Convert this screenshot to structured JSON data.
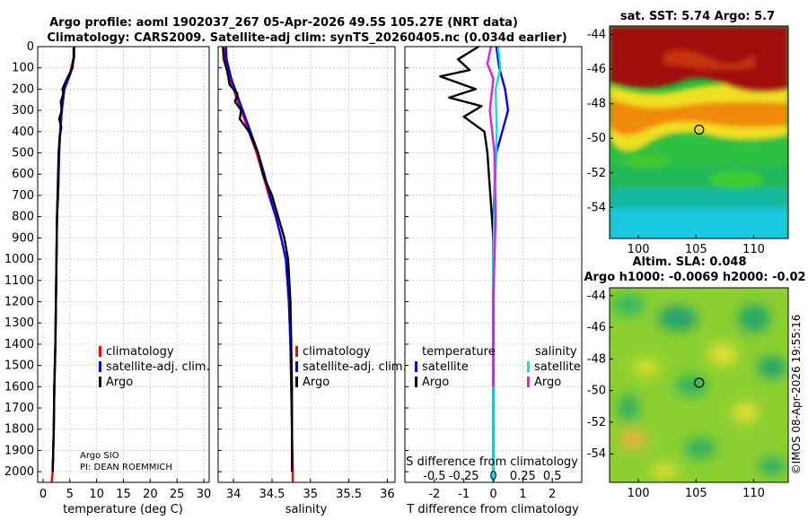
{
  "titles": {
    "line1": "Argo profile: aoml 1902037_267 05-Apr-2026 49.5S 105.27E (NRT data)",
    "line2": "Climatology: CARS2009. Satellite-adj clim: synTS_20260405.nc (0.034d earlier)",
    "sst_title": "sat. SST: 5.74 Argo: 5.7",
    "sla_title1": "Altim. SLA: 0.048",
    "sla_title2": "Argo h1000: -0.0069 h2000: -0.02",
    "stamp": "©IMOS 08-Apr-2026 19:55:16",
    "argo_info1": "Argo SIO",
    "argo_info2": "PI: DEAN ROEMMICH"
  },
  "colors": {
    "climatology": "#ff0000",
    "satellite_adj": "#0000ff",
    "argo": "#000000",
    "sal_satellite": "#00e5e5",
    "sal_argo": "#e020e0",
    "grid": "#c8c8c8"
  },
  "legend": {
    "climatology": "climatology",
    "satellite_adj": "satellite-adj. clim.",
    "argo": "Argo",
    "temperature": "temperature",
    "salinity": "salinity",
    "satellite": "satellite",
    "argo2": "Argo"
  },
  "chart_data": [
    {
      "type": "line",
      "id": "temperature",
      "xlabel": "temperature (deg C)",
      "ylabel": "",
      "xlim": [
        -1,
        31
      ],
      "ylim": [
        0,
        2050
      ],
      "y_reversed": true,
      "x_ticks": [
        0,
        5,
        10,
        15,
        20,
        25,
        30
      ],
      "y_ticks": [
        0,
        100,
        200,
        300,
        400,
        500,
        600,
        700,
        800,
        900,
        1000,
        1100,
        1200,
        1300,
        1400,
        1500,
        1600,
        1700,
        1800,
        1900,
        2000
      ],
      "series": [
        {
          "name": "climatology",
          "color": "#ff0000",
          "x": [
            5.8,
            5.7,
            5.0,
            3.8,
            3.4,
            3.2,
            3.0,
            2.9,
            2.8,
            2.6,
            2.5,
            2.4,
            2.3,
            2.1,
            2.0,
            1.9,
            1.8,
            1.6
          ],
          "y": [
            0,
            50,
            130,
            200,
            300,
            400,
            500,
            600,
            700,
            800,
            1000,
            1200,
            1400,
            1600,
            1800,
            1900,
            2000,
            2050
          ]
        },
        {
          "name": "satellite-adj. clim.",
          "color": "#0000ff",
          "x": [
            5.8,
            5.8,
            5.2,
            4.0,
            3.5,
            3.2,
            3.0,
            2.9,
            2.8,
            2.6,
            2.5,
            2.4,
            2.3,
            2.1,
            2.0,
            1.9,
            1.8
          ],
          "y": [
            0,
            50,
            120,
            200,
            300,
            400,
            500,
            600,
            700,
            800,
            1000,
            1200,
            1400,
            1600,
            1800,
            1900,
            2000
          ]
        },
        {
          "name": "Argo",
          "color": "#000000",
          "x": [
            5.7,
            5.7,
            5.5,
            4.3,
            3.6,
            3.8,
            3.3,
            3.5,
            3.0,
            3.4,
            3.1,
            2.9,
            2.8,
            2.6,
            2.5,
            2.4,
            2.3,
            2.1,
            2.0,
            1.9,
            1.8
          ],
          "y": [
            5,
            50,
            100,
            160,
            200,
            220,
            260,
            300,
            340,
            380,
            420,
            500,
            600,
            800,
            1000,
            1200,
            1400,
            1600,
            1800,
            1900,
            2000
          ]
        }
      ],
      "legend_entries": [
        "climatology",
        "satellite-adj. clim.",
        "Argo"
      ],
      "annotations": [
        "Argo SIO",
        "PI: DEAN ROEMMICH"
      ]
    },
    {
      "type": "line",
      "id": "salinity",
      "xlabel": "salinity",
      "ylabel": "",
      "xlim": [
        33.8,
        36.1
      ],
      "ylim": [
        0,
        2050
      ],
      "y_reversed": true,
      "x_ticks": [
        34,
        34.5,
        35,
        35.5,
        36
      ],
      "series": [
        {
          "name": "climatology",
          "color": "#ff0000",
          "x": [
            33.86,
            33.87,
            33.95,
            34.05,
            34.2,
            34.3,
            34.38,
            34.46,
            34.55,
            34.62,
            34.68,
            34.72,
            34.74,
            34.75,
            34.76,
            34.77,
            34.77
          ],
          "y": [
            0,
            60,
            150,
            250,
            400,
            500,
            600,
            700,
            800,
            900,
            1000,
            1200,
            1400,
            1600,
            1800,
            2000,
            2050
          ]
        },
        {
          "name": "satellite-adj. clim.",
          "color": "#0000ff",
          "x": [
            33.9,
            33.91,
            33.97,
            34.07,
            34.22,
            34.32,
            34.4,
            34.47,
            34.55,
            34.62,
            34.68,
            34.72,
            34.74,
            34.75,
            34.76,
            34.76
          ],
          "y": [
            0,
            60,
            150,
            250,
            400,
            500,
            600,
            700,
            800,
            900,
            1000,
            1200,
            1400,
            1600,
            1800,
            2000
          ]
        },
        {
          "name": "Argo",
          "color": "#000000",
          "x": [
            33.87,
            33.88,
            33.92,
            33.95,
            34.05,
            34.02,
            34.1,
            34.08,
            34.2,
            34.32,
            34.38,
            34.5,
            34.58,
            34.66,
            34.71,
            34.74,
            34.75,
            34.76,
            34.76
          ],
          "y": [
            5,
            60,
            120,
            180,
            220,
            260,
            300,
            340,
            400,
            500,
            600,
            700,
            800,
            900,
            1000,
            1200,
            1400,
            1600,
            2000
          ]
        }
      ],
      "legend_entries": [
        "climatology",
        "satellite-adj. clim.",
        "Argo"
      ]
    },
    {
      "type": "line",
      "id": "differences",
      "xlabel": "T difference from climatology",
      "x2label": "S difference from climatology",
      "xlim": [
        -3,
        3
      ],
      "x2lim": [
        -0.75,
        0.75
      ],
      "ylim": [
        0,
        2050
      ],
      "y_reversed": true,
      "x_ticks": [
        -2,
        -1,
        0,
        1,
        2
      ],
      "x_tick_labels": [
        "-2",
        "-1",
        "0",
        "1",
        "2"
      ],
      "x2_ticks": [
        -0.5,
        -0.25,
        0,
        0.25,
        0.5
      ],
      "x2_tick_labels": [
        "-0.5",
        "-0.25",
        "0",
        "0.25",
        "0.5"
      ],
      "series": [
        {
          "name": "temperature satellite",
          "axis": "T",
          "color": "#0000ff",
          "x": [
            0.1,
            0.2,
            0.4,
            0.5,
            0.3,
            0.1,
            0.0,
            0.0,
            0.0
          ],
          "y": [
            0,
            100,
            200,
            300,
            400,
            500,
            800,
            1200,
            2050
          ]
        },
        {
          "name": "temperature Argo",
          "axis": "T",
          "color": "#000000",
          "x": [
            -0.5,
            -1.2,
            -0.8,
            -1.8,
            -0.6,
            -1.5,
            -0.4,
            -1.0,
            -0.3,
            -0.2,
            -0.1,
            0.0,
            0.0,
            0.0
          ],
          "y": [
            0,
            60,
            110,
            140,
            200,
            240,
            280,
            330,
            400,
            500,
            700,
            900,
            1200,
            2000
          ]
        },
        {
          "name": "salinity satellite",
          "axis": "S",
          "color": "#00e5e5",
          "x": [
            0.04,
            0.06,
            0.02,
            0.03,
            0.01,
            0.0,
            0.0
          ],
          "y": [
            0,
            100,
            200,
            400,
            700,
            1000,
            2050
          ]
        },
        {
          "name": "salinity Argo",
          "axis": "S",
          "color": "#e020e0",
          "x": [
            -0.02,
            -0.05,
            0.0,
            -0.03,
            0.01,
            0.02,
            0.0,
            0.0
          ],
          "y": [
            0,
            80,
            150,
            300,
            500,
            800,
            1200,
            1600
          ]
        }
      ],
      "legend_groups": [
        "temperature",
        "salinity"
      ],
      "legend_entries": [
        "satellite",
        "Argo",
        "satellite",
        "Argo"
      ]
    },
    {
      "type": "heatmap",
      "id": "sst_map",
      "title": "sat. SST: 5.74 Argo: 5.7",
      "xlim": [
        97.5,
        113
      ],
      "ylim": [
        -55.8,
        -43.5
      ],
      "x_ticks": [
        100,
        105,
        110
      ],
      "y_ticks": [
        -44,
        -46,
        -48,
        -50,
        -52,
        -54
      ],
      "marker": {
        "lon": 105.27,
        "lat": -49.5
      }
    },
    {
      "type": "heatmap",
      "id": "sla_map",
      "title": "Altim. SLA: 0.048",
      "xlim": [
        97.5,
        113
      ],
      "ylim": [
        -55.8,
        -43.5
      ],
      "x_ticks": [
        100,
        105,
        110
      ],
      "y_ticks": [
        -44,
        -46,
        -48,
        -50,
        -52,
        -54
      ],
      "marker": {
        "lon": 105.27,
        "lat": -49.5
      }
    }
  ]
}
